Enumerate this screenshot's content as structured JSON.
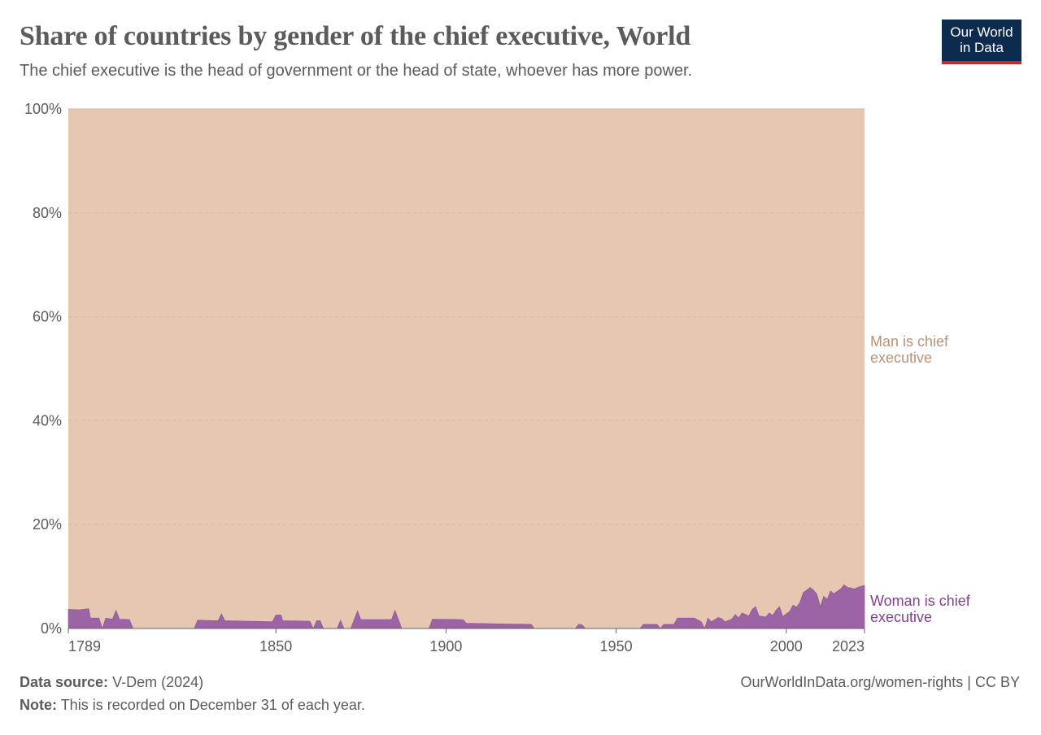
{
  "title": "Share of countries by gender of the chief executive, World",
  "subtitle": "The chief executive is the head of government or the head of state, whoever has more power.",
  "logo": {
    "line1": "Our World",
    "line2": "in Data"
  },
  "footer": {
    "source_label": "Data source:",
    "source_value": "V-Dem (2024)",
    "note_label": "Note:",
    "note_value": "This is recorded on December 31 of each year.",
    "credit": "OurWorldInData.org/women-rights | CC BY"
  },
  "colors": {
    "man": "#e6c7b1",
    "woman": "#9c64a4",
    "man_label": "#b89478",
    "woman_label": "#883e93"
  },
  "chart_data": {
    "type": "area",
    "stacked": true,
    "xlim": [
      1789,
      2023
    ],
    "ylim": [
      0,
      100
    ],
    "x_ticks": [
      "1789",
      "1850",
      "1900",
      "1950",
      "2000",
      "2023"
    ],
    "y_ticks": [
      "0%",
      "20%",
      "40%",
      "60%",
      "80%",
      "100%"
    ],
    "grid": "horizontal dashed",
    "series": [
      {
        "name": "Woman is chief executive",
        "color": "#9c64a4",
        "points": [
          [
            1789,
            3.7
          ],
          [
            1792,
            3.6
          ],
          [
            1795,
            3.8
          ],
          [
            1795.5,
            2.0
          ],
          [
            1798,
            2.0
          ],
          [
            1799,
            0
          ],
          [
            1800,
            2.0
          ],
          [
            1802,
            1.8
          ],
          [
            1803,
            3.5
          ],
          [
            1804,
            1.8
          ],
          [
            1807,
            1.7
          ],
          [
            1808,
            0
          ],
          [
            1826,
            0
          ],
          [
            1827,
            1.6
          ],
          [
            1833,
            1.5
          ],
          [
            1834,
            2.8
          ],
          [
            1835,
            1.5
          ],
          [
            1849,
            1.3
          ],
          [
            1850,
            2.6
          ],
          [
            1851.5,
            2.6
          ],
          [
            1852,
            1.5
          ],
          [
            1860,
            1.4
          ],
          [
            1861,
            0
          ],
          [
            1862,
            1.5
          ],
          [
            1863,
            1.5
          ],
          [
            1864,
            0
          ],
          [
            1868,
            0
          ],
          [
            1869,
            1.6
          ],
          [
            1870,
            0
          ],
          [
            1872,
            0
          ],
          [
            1874,
            3.4
          ],
          [
            1875,
            1.7
          ],
          [
            1884,
            1.7
          ],
          [
            1885,
            3.5
          ],
          [
            1886,
            1.8
          ],
          [
            1887,
            0
          ],
          [
            1895,
            0
          ],
          [
            1896,
            1.8
          ],
          [
            1905,
            1.7
          ],
          [
            1906,
            1.0
          ],
          [
            1925,
            0.8
          ],
          [
            1926,
            0
          ],
          [
            1938,
            0
          ],
          [
            1939,
            0.8
          ],
          [
            1940,
            0.7
          ],
          [
            1941,
            0
          ],
          [
            1957,
            0
          ],
          [
            1958,
            0.8
          ],
          [
            1962,
            0.8
          ],
          [
            1963,
            0
          ],
          [
            1964,
            0.8
          ],
          [
            1967,
            0.8
          ],
          [
            1968,
            2.0
          ],
          [
            1973,
            2.0
          ],
          [
            1975,
            1.3
          ],
          [
            1976,
            0
          ],
          [
            1977,
            2.0
          ],
          [
            1978,
            1.3
          ],
          [
            1980,
            2.1
          ],
          [
            1981,
            1.9
          ],
          [
            1982,
            1.3
          ],
          [
            1984,
            1.8
          ],
          [
            1985,
            2.7
          ],
          [
            1986,
            2.0
          ],
          [
            1987,
            3.0
          ],
          [
            1988,
            2.7
          ],
          [
            1989,
            2.4
          ],
          [
            1990,
            3.7
          ],
          [
            1991,
            4.2
          ],
          [
            1992,
            2.4
          ],
          [
            1994,
            2.2
          ],
          [
            1995,
            3.0
          ],
          [
            1996,
            2.5
          ],
          [
            1997,
            3.5
          ],
          [
            1998,
            4.2
          ],
          [
            1999,
            2.3
          ],
          [
            2001,
            3.3
          ],
          [
            2002,
            4.5
          ],
          [
            2003,
            4.1
          ],
          [
            2004,
            5.0
          ],
          [
            2005,
            6.9
          ],
          [
            2006,
            7.4
          ],
          [
            2007,
            7.9
          ],
          [
            2008,
            7.4
          ],
          [
            2009,
            6.6
          ],
          [
            2010,
            4.2
          ],
          [
            2011,
            6.2
          ],
          [
            2012,
            5.6
          ],
          [
            2013,
            7.2
          ],
          [
            2014,
            6.7
          ],
          [
            2016,
            7.6
          ],
          [
            2017,
            8.4
          ],
          [
            2018,
            7.9
          ],
          [
            2019,
            7.8
          ],
          [
            2020,
            7.6
          ],
          [
            2021,
            7.9
          ],
          [
            2022,
            8.1
          ],
          [
            2023,
            8.3
          ]
        ]
      },
      {
        "name": "Man is chief executive",
        "color": "#e6c7b1",
        "fills_to": 100
      }
    ]
  }
}
